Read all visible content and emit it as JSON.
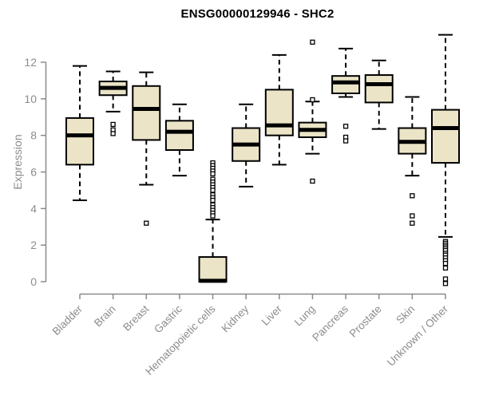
{
  "chart_data": {
    "type": "boxplot",
    "title": "ENSG00000129946 - SHC2",
    "xlabel": "",
    "ylabel": "Expression",
    "ylim": [
      -0.7,
      13.7
    ],
    "yticks": [
      0,
      2,
      4,
      6,
      8,
      10,
      12
    ],
    "grid": false,
    "legend": "none",
    "categories": [
      "Bladder",
      "Brain",
      "Breast",
      "Gastric",
      "Hematopoietic cells",
      "Kidney",
      "Liver",
      "Lung",
      "Pancreas",
      "Prostate",
      "Skin",
      "Unknown / Other"
    ],
    "series": [
      {
        "category": "Bladder",
        "whisker_low": 4.45,
        "q1": 6.4,
        "median": 8.0,
        "q3": 8.95,
        "whisker_high": 11.8,
        "outliers": []
      },
      {
        "category": "Brain",
        "whisker_low": 9.3,
        "q1": 10.2,
        "median": 10.6,
        "q3": 10.95,
        "whisker_high": 11.5,
        "outliers": [
          8.6,
          8.3,
          8.1
        ]
      },
      {
        "category": "Breast",
        "whisker_low": 5.3,
        "q1": 7.75,
        "median": 9.45,
        "q3": 10.7,
        "whisker_high": 11.45,
        "outliers": [
          3.2
        ]
      },
      {
        "category": "Gastric",
        "whisker_low": 5.8,
        "q1": 7.2,
        "median": 8.2,
        "q3": 8.8,
        "whisker_high": 9.7,
        "outliers": []
      },
      {
        "category": "Hematopoietic cells",
        "whisker_low": 0.0,
        "q1": 0.0,
        "median": 0.05,
        "q3": 1.35,
        "whisker_high": 3.4,
        "outliers": [
          6.5,
          6.35,
          6.2,
          6.05,
          5.9,
          5.6,
          5.45,
          5.3,
          5.15,
          5.0,
          4.75,
          4.6,
          4.45,
          4.2,
          4.05,
          3.9,
          3.75,
          3.6
        ]
      },
      {
        "category": "Kidney",
        "whisker_low": 5.2,
        "q1": 6.6,
        "median": 7.5,
        "q3": 8.4,
        "whisker_high": 9.7,
        "outliers": []
      },
      {
        "category": "Liver",
        "whisker_low": 6.4,
        "q1": 8.0,
        "median": 8.55,
        "q3": 10.5,
        "whisker_high": 12.4,
        "outliers": []
      },
      {
        "category": "Lung",
        "whisker_low": 7.0,
        "q1": 7.9,
        "median": 8.3,
        "q3": 8.7,
        "whisker_high": 9.85,
        "outliers": [
          13.1,
          9.95,
          5.5
        ]
      },
      {
        "category": "Pancreas",
        "whisker_low": 10.1,
        "q1": 10.3,
        "median": 10.9,
        "q3": 11.25,
        "whisker_high": 12.75,
        "outliers": [
          8.5,
          7.9,
          7.7
        ]
      },
      {
        "category": "Prostate",
        "whisker_low": 8.35,
        "q1": 9.8,
        "median": 10.8,
        "q3": 11.3,
        "whisker_high": 12.1,
        "outliers": []
      },
      {
        "category": "Skin",
        "whisker_low": 5.8,
        "q1": 7.0,
        "median": 7.65,
        "q3": 8.4,
        "whisker_high": 10.1,
        "outliers": [
          4.7,
          3.6,
          3.2
        ]
      },
      {
        "category": "Unknown / Other",
        "whisker_low": 2.45,
        "q1": 6.5,
        "median": 8.4,
        "q3": 9.4,
        "whisker_high": 13.5,
        "outliers": [
          2.2,
          2.1,
          2.0,
          1.9,
          1.8,
          1.7,
          1.55,
          1.45,
          1.3,
          1.15,
          1.0,
          0.75,
          0.15,
          -0.1
        ]
      }
    ],
    "colors": {
      "box_fill": "#ebe4c7",
      "box_border": "#000000",
      "median": "#000000",
      "axis": "#8a8a8a",
      "axis_text": "#8c8c8c",
      "title": "#000000",
      "background": "#ffffff",
      "outlier_fill": "#ffffff"
    }
  }
}
